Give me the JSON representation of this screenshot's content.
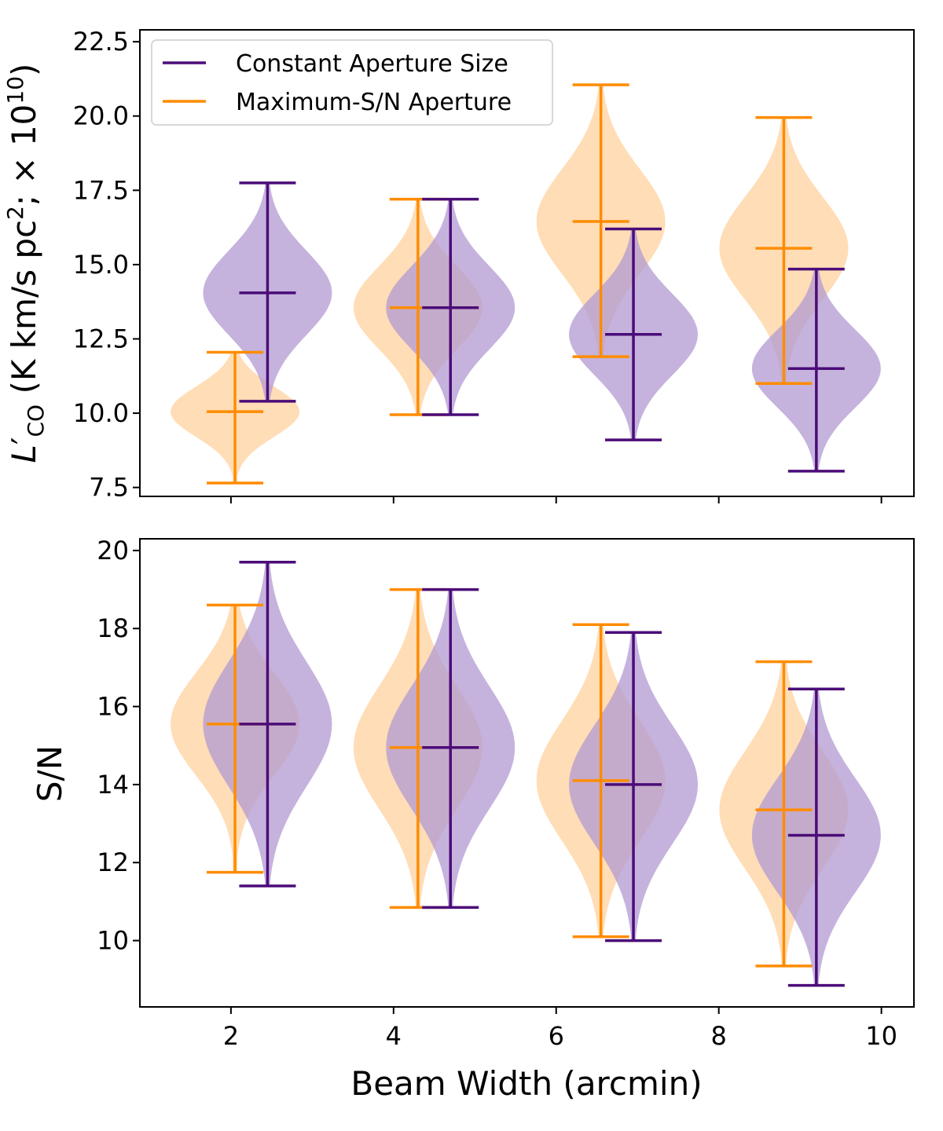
{
  "chart_data": [
    {
      "type": "violin",
      "ylabel_parts": {
        "L": "L",
        "prime": "′",
        "sub": "CO",
        "units_a": " (K km/s pc",
        "sup2": "2",
        "units_b": ";  × 10",
        "sup10": "10",
        "close": ")"
      },
      "xlabel": "",
      "ylim": [
        7.2,
        22.9
      ],
      "xlim": [
        0.88,
        10.4
      ],
      "yticks": [
        7.5,
        10.0,
        12.5,
        15.0,
        17.5,
        20.0,
        22.5
      ],
      "ytick_labels": [
        "7.5",
        "10.0",
        "12.5",
        "15.0",
        "17.5",
        "20.0",
        "22.5"
      ],
      "xticks": [
        2,
        4,
        6,
        8,
        10
      ],
      "xtick_labels": [
        "",
        "",
        "",
        "",
        ""
      ],
      "legend": {
        "position": "top-left",
        "entries": [
          "Constant Aperture Size",
          "Maximum-S/N Aperture"
        ]
      },
      "series": [
        {
          "name": "Constant Aperture Size",
          "color": "#4b0c78",
          "fill": "#b19ad1",
          "positions": [
            2.45,
            4.7,
            6.95,
            9.2
          ],
          "min": [
            10.4,
            9.95,
            9.1,
            8.05
          ],
          "max": [
            17.75,
            17.2,
            16.2,
            14.85
          ],
          "median": [
            14.05,
            13.55,
            12.65,
            11.5
          ]
        },
        {
          "name": "Maximum-S/N Aperture",
          "color": "#ff8c00",
          "fill": "#ffd29e",
          "positions": [
            2.05,
            4.3,
            6.55,
            8.8
          ],
          "min": [
            7.65,
            9.95,
            11.9,
            11.0
          ],
          "max": [
            12.05,
            17.2,
            21.05,
            19.95
          ],
          "median": [
            10.05,
            13.55,
            16.45,
            15.55
          ]
        }
      ]
    },
    {
      "type": "violin",
      "ylabel": "S/N",
      "xlabel": "Beam Width (arcmin)",
      "ylim": [
        8.3,
        20.3
      ],
      "xlim": [
        0.88,
        10.4
      ],
      "yticks": [
        10,
        12,
        14,
        16,
        18,
        20
      ],
      "ytick_labels": [
        "10",
        "12",
        "14",
        "16",
        "18",
        "20"
      ],
      "xticks": [
        2,
        4,
        6,
        8,
        10
      ],
      "xtick_labels": [
        "2",
        "4",
        "6",
        "8",
        "10"
      ],
      "series": [
        {
          "name": "Constant Aperture Size",
          "color": "#4b0c78",
          "fill": "#b19ad1",
          "positions": [
            2.45,
            4.7,
            6.95,
            9.2
          ],
          "min": [
            11.4,
            10.85,
            10.0,
            8.85
          ],
          "max": [
            19.7,
            19.0,
            17.9,
            16.45
          ],
          "median": [
            15.55,
            14.95,
            14.0,
            12.7
          ]
        },
        {
          "name": "Maximum-S/N Aperture",
          "color": "#ff8c00",
          "fill": "#ffd29e",
          "positions": [
            2.05,
            4.3,
            6.55,
            8.8
          ],
          "min": [
            11.75,
            10.85,
            10.1,
            9.35
          ],
          "max": [
            18.6,
            19.0,
            18.1,
            17.15
          ],
          "median": [
            15.55,
            14.95,
            14.1,
            13.35
          ]
        }
      ]
    }
  ]
}
